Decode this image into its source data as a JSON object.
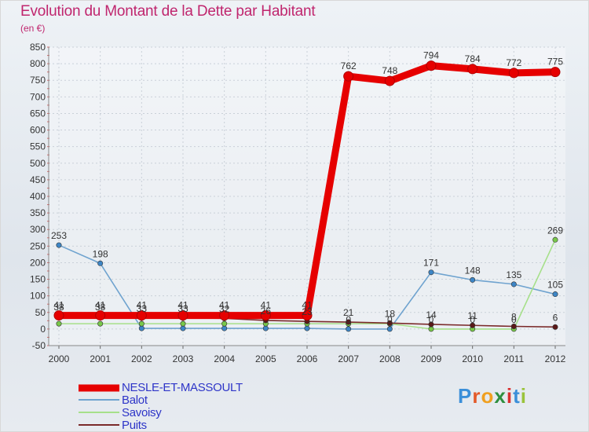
{
  "title": "Evolution du Montant de la Dette par Habitant",
  "unit_label": "(en €)",
  "logo": {
    "text": "Proxiti",
    "letter_colors": [
      "#3b8fd9",
      "#e35a2a",
      "#f0a020",
      "#2f8f3f",
      "#d93030",
      "#3b8fd9",
      "#9ac33a"
    ]
  },
  "chart_data": {
    "type": "line",
    "title": "Evolution du Montant de la Dette par Habitant",
    "ylabel": "(en €)",
    "xlabel": "",
    "x": [
      "2000",
      "2001",
      "2002",
      "2003",
      "2004",
      "2005",
      "2006",
      "2007",
      "2008",
      "2009",
      "2010",
      "2011",
      "2012"
    ],
    "ylim": [
      -50,
      850
    ],
    "yticks": [
      -50,
      0,
      50,
      100,
      150,
      200,
      250,
      300,
      350,
      400,
      450,
      500,
      550,
      600,
      650,
      700,
      750,
      800,
      850
    ],
    "grid": true,
    "legend_position": "bottom-left",
    "series": [
      {
        "name": "NESLE-ET-MASSOULT",
        "color": "#e60000",
        "marker_color": "#e60000",
        "thick": true,
        "values": [
          41,
          41,
          41,
          41,
          41,
          41,
          41,
          762,
          748,
          794,
          784,
          772,
          775
        ],
        "labels": [
          "41",
          "41",
          "41",
          "41",
          "41",
          "41",
          "41",
          "762",
          "748",
          "794",
          "784",
          "772",
          "775"
        ]
      },
      {
        "name": "Balot",
        "color": "#6fa3cf",
        "marker_color": "#3d86c6",
        "thick": false,
        "values": [
          253,
          198,
          2,
          2,
          2,
          2,
          2,
          0,
          0,
          171,
          148,
          135,
          105
        ],
        "labels": [
          "253",
          "198",
          "",
          "",
          "",
          "",
          "",
          "0",
          "0",
          "171",
          "148",
          "135",
          "105"
        ]
      },
      {
        "name": "Savoisy",
        "color": "#a6e08a",
        "marker_color": "#78c84a",
        "thick": false,
        "values": [
          16,
          16,
          16,
          16,
          16,
          16,
          16,
          16,
          16,
          0,
          0,
          0,
          269
        ],
        "labels": [
          "",
          "",
          "",
          "",
          "",
          "",
          "",
          "",
          "",
          "0",
          "0",
          "0",
          "269"
        ]
      },
      {
        "name": "Puits",
        "color": "#7a2a2a",
        "marker_color": "#5a1818",
        "thick": false,
        "values": [
          38,
          38,
          33,
          33,
          32,
          26,
          23,
          21,
          18,
          14,
          11,
          8,
          6
        ],
        "labels": [
          "38",
          "38",
          "33",
          "33",
          "32",
          "26",
          "23",
          "21",
          "18",
          "14",
          "11",
          "8",
          "6"
        ]
      }
    ]
  }
}
